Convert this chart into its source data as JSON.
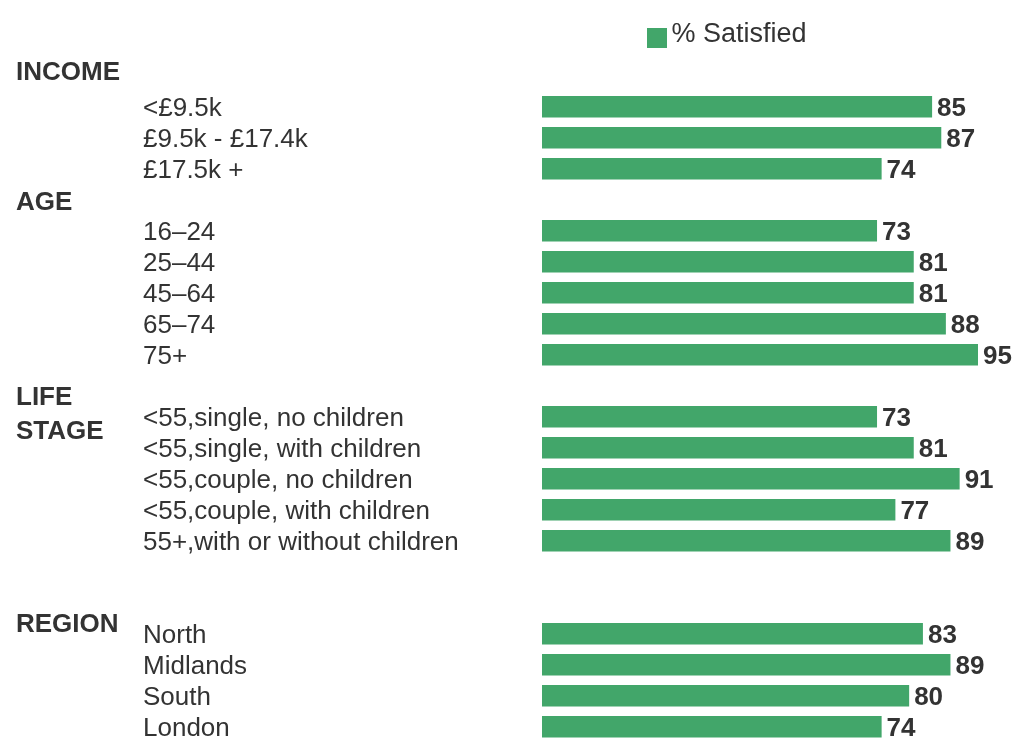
{
  "chart_data": {
    "type": "bar",
    "orientation": "horizontal",
    "categories": [
      "<£9.5k",
      "£9.5k - £17.4k",
      "£17.5k +",
      null,
      "16–24",
      "25–44",
      "45–64",
      "65–74",
      "75+",
      null,
      "<55,single, no children",
      "<55,single, with children",
      "<55,couple, no children",
      "<55,couple, with children",
      "55+,with or without children",
      null,
      null,
      "North",
      "Midlands",
      "South",
      "London"
    ],
    "series": [
      {
        "name": "% Satisfied",
        "color": "#42a66a",
        "values": [
          85,
          87,
          74,
          null,
          73,
          81,
          81,
          88,
          95,
          null,
          73,
          81,
          91,
          77,
          89,
          null,
          null,
          83,
          89,
          80,
          74
        ]
      }
    ],
    "annotations": [
      "INCOME",
      "AGE",
      "LIFE STAGE",
      "REGION"
    ],
    "data_labels": true,
    "legend": "top",
    "grid": false
  }
}
